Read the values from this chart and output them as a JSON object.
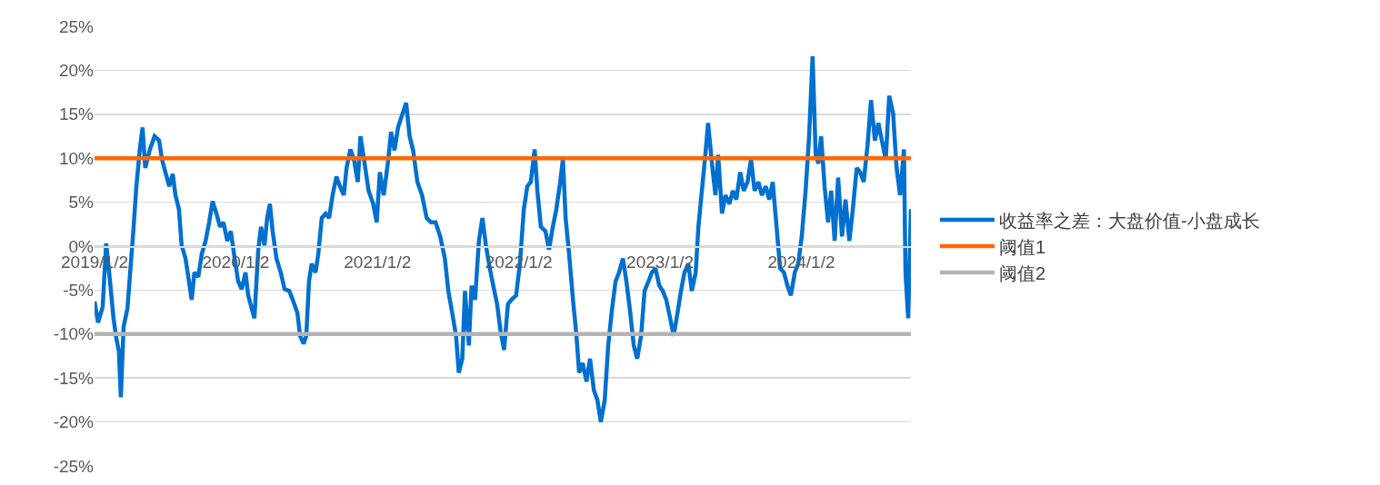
{
  "chart_data": {
    "type": "line",
    "legend": "right",
    "grid": "y",
    "marker": "none",
    "line_style": "solid",
    "xlim": [
      "2019-01-02",
      "2024-10-11"
    ],
    "xticks": [
      {
        "value": "2019-01-02",
        "label": "2019/1/2"
      },
      {
        "value": "2020-01-02",
        "label": "2020/1/2"
      },
      {
        "value": "2021-01-02",
        "label": "2021/1/2"
      },
      {
        "value": "2022-01-02",
        "label": "2022/1/2"
      },
      {
        "value": "2023-01-02",
        "label": "2023/1/2"
      },
      {
        "value": "2024-01-02",
        "label": "2024/1/2"
      }
    ],
    "ylim": [
      -25,
      25
    ],
    "yticks": [
      {
        "value": -25,
        "label": "-25%"
      },
      {
        "value": -20,
        "label": "-20%"
      },
      {
        "value": -15,
        "label": "-15%"
      },
      {
        "value": -10,
        "label": "-10%"
      },
      {
        "value": -5,
        "label": "-5%"
      },
      {
        "value": 0,
        "label": "0%"
      },
      {
        "value": 5,
        "label": "5%"
      },
      {
        "value": 10,
        "label": "10%"
      },
      {
        "value": 15,
        "label": "15%"
      },
      {
        "value": 20,
        "label": "20%"
      },
      {
        "value": 25,
        "label": "25%"
      }
    ],
    "series": [
      {
        "name": "收益率之差：大盘价值-小盘成长",
        "color": "#0070d0",
        "x": [
          "2019-01-02",
          "2019-01-11",
          "2019-01-23",
          "2019-02-01",
          "2019-02-11",
          "2019-02-20",
          "2019-02-27",
          "2019-03-06",
          "2019-03-11",
          "2019-03-18",
          "2019-03-28",
          "2019-04-04",
          "2019-04-13",
          "2019-04-20",
          "2019-04-29",
          "2019-05-06",
          "2019-05-13",
          "2019-05-25",
          "2019-06-06",
          "2019-06-18",
          "2019-06-25",
          "2019-07-04",
          "2019-07-14",
          "2019-07-23",
          "2019-07-30",
          "2019-08-08",
          "2019-08-15",
          "2019-08-25",
          "2019-09-03",
          "2019-09-10",
          "2019-09-17",
          "2019-09-27",
          "2019-10-06",
          "2019-10-16",
          "2019-10-25",
          "2019-11-03",
          "2019-11-13",
          "2019-11-22",
          "2019-12-01",
          "2019-12-11",
          "2019-12-20",
          "2019-12-30",
          "2020-01-08",
          "2020-01-17",
          "2020-01-27",
          "2020-02-03",
          "2020-02-12",
          "2020-02-19",
          "2020-02-29",
          "2020-03-07",
          "2020-03-16",
          "2020-03-23",
          "2020-03-30",
          "2020-04-06",
          "2020-04-16",
          "2020-04-27",
          "2020-05-07",
          "2020-05-19",
          "2020-05-28",
          "2020-06-09",
          "2020-06-16",
          "2020-06-25",
          "2020-07-02",
          "2020-07-09",
          "2020-07-16",
          "2020-07-26",
          "2020-08-02",
          "2020-08-11",
          "2020-08-21",
          "2020-08-30",
          "2020-09-08",
          "2020-09-18",
          "2020-09-27",
          "2020-10-07",
          "2020-10-14",
          "2020-10-24",
          "2020-11-02",
          "2020-11-12",
          "2020-11-19",
          "2020-11-28",
          "2020-12-10",
          "2020-12-22",
          "2020-12-31",
          "2021-01-08",
          "2021-01-18",
          "2021-01-30",
          "2021-02-06",
          "2021-02-15",
          "2021-02-24",
          "2021-03-17",
          "2021-03-26",
          "2021-04-04",
          "2021-04-15",
          "2021-04-27",
          "2021-05-09",
          "2021-05-20",
          "2021-06-01",
          "2021-06-13",
          "2021-06-25",
          "2021-07-04",
          "2021-07-14",
          "2021-07-24",
          "2021-07-31",
          "2021-08-09",
          "2021-08-16",
          "2021-08-26",
          "2021-09-02",
          "2021-09-11",
          "2021-09-21",
          "2021-09-30",
          "2021-10-09",
          "2021-10-19",
          "2021-10-28",
          "2021-11-07",
          "2021-11-16",
          "2021-11-25",
          "2021-12-05",
          "2021-12-14",
          "2021-12-26",
          "2022-01-05",
          "2022-01-15",
          "2022-01-24",
          "2022-02-02",
          "2022-02-12",
          "2022-02-19",
          "2022-02-28",
          "2022-03-12",
          "2022-03-21",
          "2022-03-31",
          "2022-04-09",
          "2022-04-19",
          "2022-04-26",
          "2022-05-03",
          "2022-05-12",
          "2022-05-22",
          "2022-05-31",
          "2022-06-07",
          "2022-06-16",
          "2022-06-26",
          "2022-07-05",
          "2022-07-15",
          "2022-07-24",
          "2022-08-02",
          "2022-08-12",
          "2022-08-21",
          "2022-08-31",
          "2022-09-09",
          "2022-09-18",
          "2022-09-28",
          "2022-10-07",
          "2022-10-17",
          "2022-10-26",
          "2022-11-04",
          "2022-11-14",
          "2022-11-23",
          "2022-12-03",
          "2022-12-12",
          "2022-12-21",
          "2022-12-31",
          "2023-01-09",
          "2023-01-18",
          "2023-01-28",
          "2023-02-06",
          "2023-02-16",
          "2023-02-25",
          "2023-03-06",
          "2023-03-16",
          "2023-03-25",
          "2023-04-04",
          "2023-04-11",
          "2023-04-20",
          "2023-04-29",
          "2023-05-06",
          "2023-05-16",
          "2023-05-25",
          "2023-06-01",
          "2023-06-11",
          "2023-06-20",
          "2023-06-30",
          "2023-07-09",
          "2023-07-18",
          "2023-07-28",
          "2023-08-06",
          "2023-08-16",
          "2023-08-25",
          "2023-09-03",
          "2023-09-13",
          "2023-09-22",
          "2023-10-02",
          "2023-10-11",
          "2023-10-20",
          "2023-10-30",
          "2023-11-08",
          "2023-11-18",
          "2023-11-27",
          "2023-12-06",
          "2023-12-16",
          "2023-12-25",
          "2024-01-03",
          "2024-01-13",
          "2024-01-22",
          "2024-01-31",
          "2024-02-08",
          "2024-02-15",
          "2024-02-22",
          "2024-03-02",
          "2024-03-11",
          "2024-03-19",
          "2024-03-28",
          "2024-04-06",
          "2024-04-16",
          "2024-04-25",
          "2024-05-05",
          "2024-05-14",
          "2024-05-24",
          "2024-06-02",
          "2024-06-11",
          "2024-06-21",
          "2024-06-30",
          "2024-07-10",
          "2024-07-19",
          "2024-07-28",
          "2024-08-07",
          "2024-08-16",
          "2024-08-26",
          "2024-09-04",
          "2024-09-13",
          "2024-09-23",
          "2024-09-27",
          "2024-10-04",
          "2024-10-11"
        ],
        "values": [
          -6.3,
          -8.7,
          -6.9,
          0.3,
          -4,
          -8.2,
          -10.4,
          -12,
          -17.2,
          -9.2,
          -7.1,
          -3,
          2.2,
          6.8,
          11,
          13.5,
          8.9,
          11,
          12.5,
          12,
          9.9,
          8.4,
          6.8,
          8.2,
          5.8,
          4.2,
          0.1,
          -1.4,
          -4,
          -6.1,
          -3,
          -3.5,
          -0.9,
          0.6,
          2.7,
          5.1,
          3.7,
          2.2,
          2.7,
          0.6,
          1.7,
          -1.4,
          -4,
          -4.9,
          -3,
          -5.6,
          -7.1,
          -8.2,
          -0.4,
          2.2,
          0.1,
          3.2,
          4.8,
          1.7,
          -1.4,
          -3,
          -4.9,
          -5.1,
          -6.1,
          -7.6,
          -10.2,
          -11.1,
          -10.2,
          -4,
          -2,
          -3,
          -0.9,
          3.2,
          3.7,
          3.2,
          5.8,
          7.9,
          6.8,
          5.8,
          8.9,
          11,
          9.9,
          7.3,
          12.5,
          9.9,
          6.3,
          4.8,
          2.7,
          8.4,
          5.8,
          9.9,
          13,
          10.9,
          13.5,
          16.3,
          12.5,
          10.9,
          7.3,
          5.8,
          3.2,
          2.7,
          2.7,
          1.1,
          -1.4,
          -5.1,
          -7.6,
          -10.2,
          -14.4,
          -12.8,
          -5.1,
          -11.3,
          -4.5,
          -6.1,
          0.6,
          3.2,
          0.1,
          -2.5,
          -4.5,
          -6.6,
          -9.7,
          -11.8,
          -6.6,
          -6.1,
          -5.6,
          -2,
          4.2,
          6.8,
          7.3,
          11,
          6.3,
          2.2,
          1.7,
          -0.4,
          2.2,
          4.2,
          7.3,
          9.9,
          3.2,
          -0.9,
          -6.1,
          -10.2,
          -14.4,
          -13.3,
          -15.4,
          -12.8,
          -16.4,
          -17.5,
          -20,
          -17.5,
          -11.3,
          -7.1,
          -4,
          -3,
          -1.4,
          -4,
          -7.6,
          -11.3,
          -12.8,
          -10.2,
          -5.1,
          -4,
          -3,
          -2.5,
          -4.5,
          -5.1,
          -6.1,
          -8.2,
          -10.2,
          -7.6,
          -5.1,
          -3,
          -2,
          -5.1,
          -3,
          2.2,
          6.3,
          10.4,
          14,
          9.4,
          5.8,
          10.4,
          3.7,
          5.8,
          4.8,
          6.3,
          5.3,
          8.4,
          6.3,
          7.3,
          9.9,
          6.3,
          7.3,
          5.8,
          6.8,
          5.3,
          7.3,
          2.2,
          -2.5,
          -3,
          -4.5,
          -5.6,
          -3,
          -2,
          1.1,
          6.3,
          12.5,
          21.6,
          10.4,
          9.4,
          12.5,
          6.8,
          2.7,
          6.3,
          0.6,
          7.8,
          1.1,
          5.3,
          0.6,
          4.2,
          8.9,
          8.4,
          7.3,
          11.5,
          16.6,
          12,
          14,
          12,
          9.9,
          17.1,
          15.1,
          8.9,
          5.8,
          11,
          -3,
          -8.2,
          4.2
        ]
      },
      {
        "name": "阈值1",
        "color": "#ff6600",
        "x": [
          "2019-01-02",
          "2024-10-11"
        ],
        "values": [
          10,
          10
        ]
      },
      {
        "name": "阈值2",
        "color": "#b4b4b4",
        "x": [
          "2019-01-02",
          "2024-10-11"
        ],
        "values": [
          -10,
          -10
        ]
      }
    ]
  }
}
